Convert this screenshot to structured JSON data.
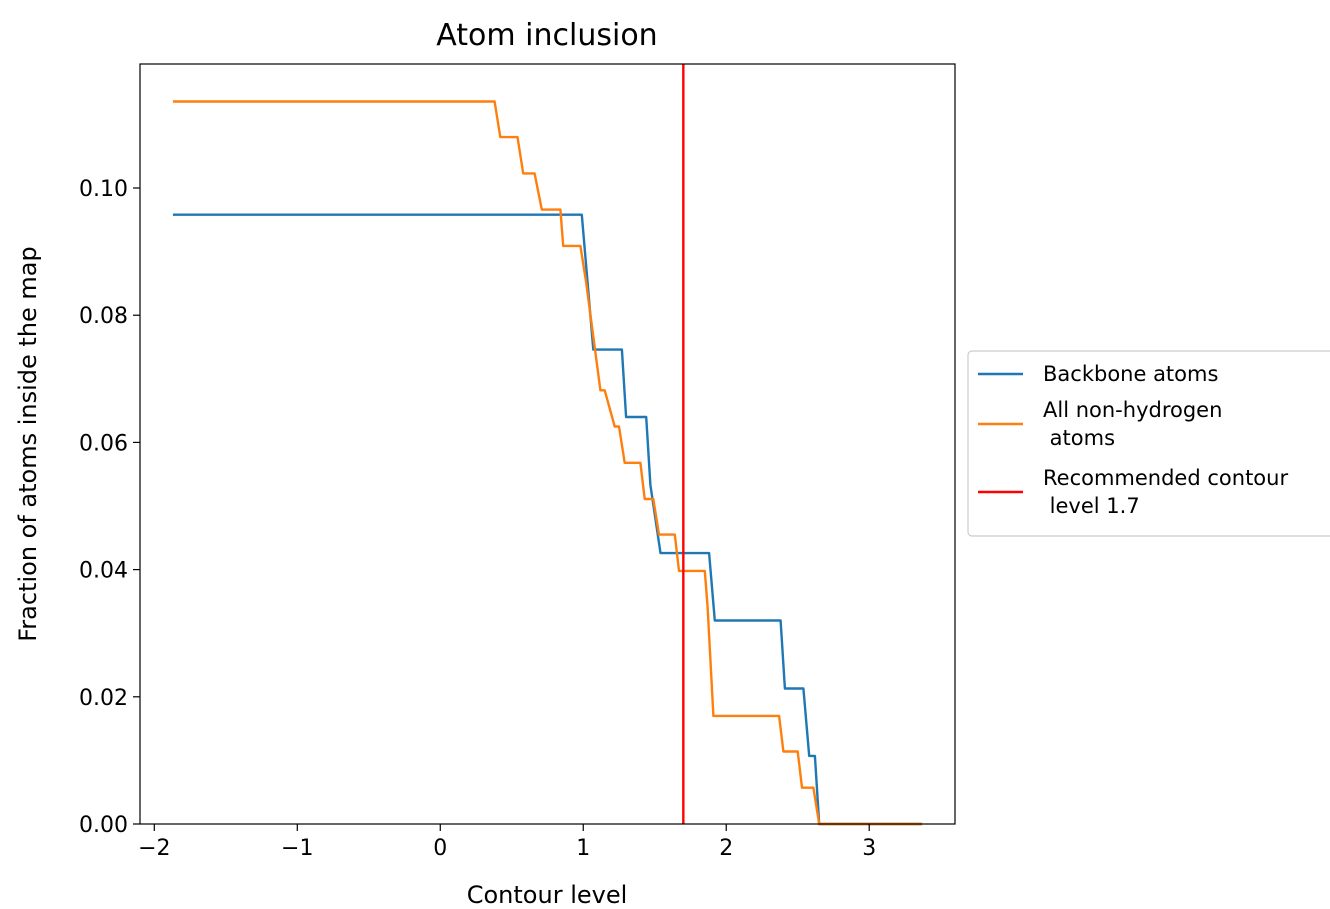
{
  "chart_data": {
    "type": "line",
    "title": "Atom inclusion",
    "xlabel": "Contour level",
    "ylabel": "Fraction of atoms inside the map",
    "xlim": [
      -2.1,
      3.6
    ],
    "ylim": [
      0.0,
      0.1195
    ],
    "x_ticks": [
      -2,
      -1,
      0,
      1,
      2,
      3
    ],
    "x_tick_labels": [
      "−2",
      "−1",
      "0",
      "1",
      "2",
      "3"
    ],
    "y_ticks": [
      0.0,
      0.02,
      0.04,
      0.06,
      0.08,
      0.1
    ],
    "y_tick_labels": [
      "0.00",
      "0.02",
      "0.04",
      "0.06",
      "0.08",
      "0.10"
    ],
    "grid": false,
    "legend_position": "outside right",
    "series": [
      {
        "name": "Backbone atoms",
        "color": "#1f77b4",
        "x": [
          -1.87,
          0.99,
          1.07,
          1.27,
          1.3,
          1.44,
          1.47,
          1.54,
          1.88,
          1.92,
          2.38,
          2.41,
          2.54,
          2.58,
          2.62,
          2.65,
          3.37
        ],
        "y": [
          0.0958,
          0.0958,
          0.0746,
          0.0746,
          0.064,
          0.064,
          0.0533,
          0.0426,
          0.0426,
          0.032,
          0.032,
          0.0213,
          0.0213,
          0.0107,
          0.0107,
          0.0,
          0.0
        ]
      },
      {
        "name": "All non-hydrogen\n atoms",
        "color": "#ff7f0e",
        "x": [
          -1.87,
          0.38,
          0.42,
          0.54,
          0.58,
          0.66,
          0.71,
          0.84,
          0.86,
          0.98,
          1.02,
          1.12,
          1.15,
          1.22,
          1.25,
          1.29,
          1.33,
          1.4,
          1.43,
          1.47,
          1.49,
          1.53,
          1.56,
          1.64,
          1.67,
          1.85,
          1.87,
          1.91,
          1.94,
          2.37,
          2.4,
          2.5,
          2.53,
          2.58,
          2.61,
          2.65,
          3.37
        ],
        "y": [
          0.1136,
          0.1136,
          0.108,
          0.108,
          0.1023,
          0.1023,
          0.0966,
          0.0966,
          0.0909,
          0.0909,
          0.0852,
          0.0682,
          0.0682,
          0.0625,
          0.0625,
          0.0568,
          0.0568,
          0.0568,
          0.0511,
          0.0511,
          0.0511,
          0.0455,
          0.0455,
          0.0455,
          0.0398,
          0.0398,
          0.0341,
          0.017,
          0.017,
          0.017,
          0.0114,
          0.0114,
          0.0057,
          0.0057,
          0.0057,
          0.0,
          0.0
        ]
      },
      {
        "name": "Recommended contour\n level 1.7",
        "color": "#ff0000",
        "type": "vline",
        "x": 1.7
      }
    ]
  }
}
